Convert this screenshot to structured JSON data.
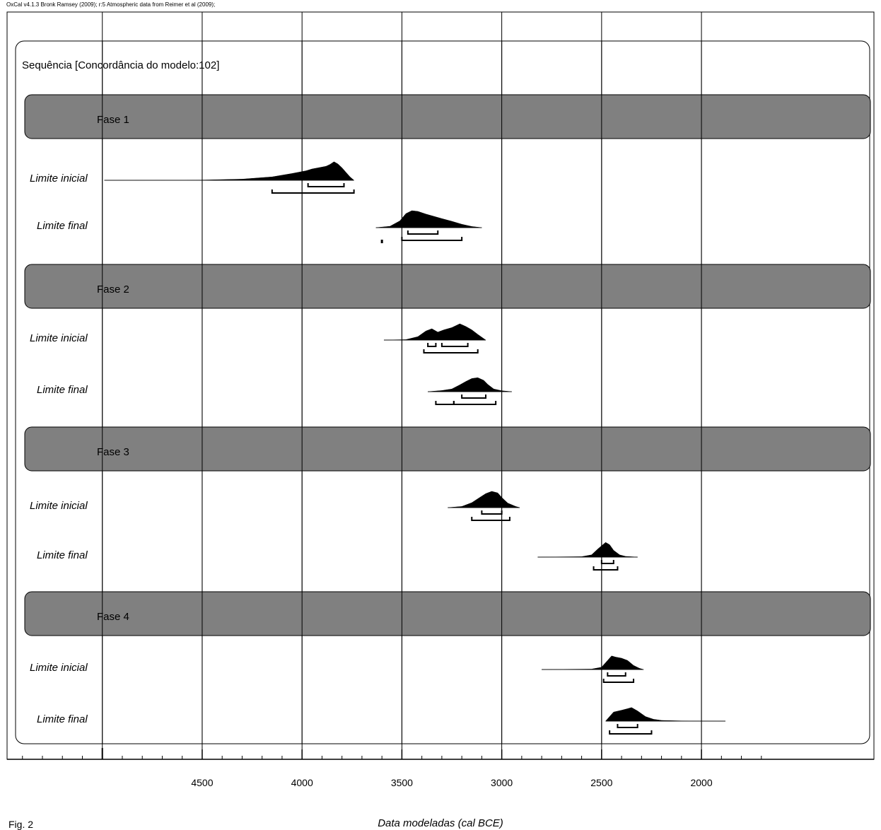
{
  "header": "OxCal v4.1.3 Bronk Ramsey (2009); r:5 Atmospheric data from Reimer et al (2009);",
  "figure_label": "Fig. 2",
  "chart_data": {
    "type": "area",
    "title": "Sequência [Concordância do modelo:102]",
    "xlabel": "Data modeladas (cal BCE)",
    "ylabel": "",
    "xlim": [
      5500,
      1700
    ],
    "x_reversed": true,
    "x_ticks": [
      4500,
      4000,
      3500,
      3000,
      2500,
      2000
    ],
    "grid": true,
    "phases": [
      {
        "name": "Fase 1",
        "boundaries": [
          {
            "label": "Limite inicial",
            "range": [
              4990,
              3740
            ],
            "curve": [
              [
                4990,
                0
              ],
              [
                4500,
                0.01
              ],
              [
                4300,
                0.05
              ],
              [
                4150,
                0.15
              ],
              [
                4050,
                0.3
              ],
              [
                3980,
                0.42
              ],
              [
                3950,
                0.5
              ],
              [
                3920,
                0.55
              ],
              [
                3880,
                0.62
              ],
              [
                3860,
                0.7
              ],
              [
                3840,
                0.82
              ],
              [
                3820,
                0.72
              ],
              [
                3800,
                0.55
              ],
              [
                3780,
                0.35
              ],
              [
                3760,
                0.15
              ],
              [
                3740,
                0
              ]
            ],
            "hpd68": [
              [
                3970,
                3790
              ]
            ],
            "hpd95": [
              [
                4150,
                3740
              ]
            ]
          },
          {
            "label": "Limite final",
            "range": [
              3630,
              3100
            ],
            "curve": [
              [
                3630,
                0
              ],
              [
                3560,
                0.06
              ],
              [
                3510,
                0.3
              ],
              [
                3480,
                0.62
              ],
              [
                3450,
                0.75
              ],
              [
                3420,
                0.72
              ],
              [
                3380,
                0.6
              ],
              [
                3340,
                0.5
              ],
              [
                3300,
                0.4
              ],
              [
                3250,
                0.28
              ],
              [
                3200,
                0.15
              ],
              [
                3150,
                0.05
              ],
              [
                3100,
                0
              ]
            ],
            "hpd68": [
              [
                3470,
                3320
              ]
            ],
            "hpd95": [
              [
                3600,
                3590
              ],
              [
                3500,
                3200
              ]
            ]
          }
        ]
      },
      {
        "name": "Fase 2",
        "boundaries": [
          {
            "label": "Limite inicial",
            "range": [
              3590,
              3080
            ],
            "curve": [
              [
                3590,
                0
              ],
              [
                3480,
                0.02
              ],
              [
                3420,
                0.15
              ],
              [
                3380,
                0.4
              ],
              [
                3350,
                0.5
              ],
              [
                3320,
                0.35
              ],
              [
                3290,
                0.45
              ],
              [
                3250,
                0.55
              ],
              [
                3210,
                0.72
              ],
              [
                3180,
                0.6
              ],
              [
                3150,
                0.45
              ],
              [
                3120,
                0.25
              ],
              [
                3080,
                0
              ]
            ],
            "hpd68": [
              [
                3370,
                3330
              ],
              [
                3300,
                3170
              ]
            ],
            "hpd95": [
              [
                3390,
                3120
              ]
            ]
          },
          {
            "label": "Limite final",
            "range": [
              3370,
              2950
            ],
            "curve": [
              [
                3370,
                0
              ],
              [
                3300,
                0.05
              ],
              [
                3250,
                0.12
              ],
              [
                3210,
                0.3
              ],
              [
                3180,
                0.45
              ],
              [
                3150,
                0.58
              ],
              [
                3120,
                0.62
              ],
              [
                3090,
                0.5
              ],
              [
                3070,
                0.32
              ],
              [
                3040,
                0.12
              ],
              [
                3000,
                0.04
              ],
              [
                2950,
                0
              ]
            ],
            "hpd68": [
              [
                3200,
                3080
              ]
            ],
            "hpd95": [
              [
                3330,
                3240
              ],
              [
                3240,
                3030
              ]
            ]
          }
        ]
      },
      {
        "name": "Fase 3",
        "boundaries": [
          {
            "label": "Limite inicial",
            "range": [
              3270,
              2910
            ],
            "curve": [
              [
                3270,
                0
              ],
              [
                3200,
                0.05
              ],
              [
                3150,
                0.22
              ],
              [
                3110,
                0.45
              ],
              [
                3080,
                0.62
              ],
              [
                3050,
                0.72
              ],
              [
                3020,
                0.65
              ],
              [
                3000,
                0.45
              ],
              [
                2970,
                0.2
              ],
              [
                2930,
                0.05
              ],
              [
                2910,
                0
              ]
            ],
            "hpd68": [
              [
                3100,
                3000
              ]
            ],
            "hpd95": [
              [
                3150,
                2960
              ]
            ]
          },
          {
            "label": "Limite final",
            "range": [
              2820,
              2320
            ],
            "curve": [
              [
                2820,
                0
              ],
              [
                2600,
                0.02
              ],
              [
                2550,
                0.1
              ],
              [
                2520,
                0.35
              ],
              [
                2500,
                0.5
              ],
              [
                2480,
                0.65
              ],
              [
                2460,
                0.55
              ],
              [
                2440,
                0.3
              ],
              [
                2410,
                0.1
              ],
              [
                2380,
                0.03
              ],
              [
                2320,
                0
              ]
            ],
            "hpd68": [
              [
                2500,
                2440
              ]
            ],
            "hpd95": [
              [
                2540,
                2420
              ]
            ]
          }
        ]
      },
      {
        "name": "Fase 4",
        "boundaries": [
          {
            "label": "Limite inicial",
            "range": [
              2800,
              2290
            ],
            "curve": [
              [
                2800,
                0
              ],
              [
                2550,
                0.02
              ],
              [
                2500,
                0.1
              ],
              [
                2470,
                0.4
              ],
              [
                2450,
                0.6
              ],
              [
                2430,
                0.55
              ],
              [
                2400,
                0.5
              ],
              [
                2370,
                0.4
              ],
              [
                2340,
                0.18
              ],
              [
                2310,
                0.05
              ],
              [
                2290,
                0
              ]
            ],
            "hpd68": [
              [
                2470,
                2380
              ]
            ],
            "hpd95": [
              [
                2490,
                2340
              ]
            ]
          },
          {
            "label": "Limite final",
            "range": [
              2480,
              1880
            ],
            "curve": [
              [
                2480,
                0
              ],
              [
                2460,
                0.2
              ],
              [
                2440,
                0.4
              ],
              [
                2400,
                0.48
              ],
              [
                2370,
                0.55
              ],
              [
                2350,
                0.6
              ],
              [
                2320,
                0.45
              ],
              [
                2280,
                0.2
              ],
              [
                2240,
                0.08
              ],
              [
                2200,
                0.03
              ],
              [
                2100,
                0.01
              ],
              [
                1880,
                0
              ]
            ],
            "hpd68": [
              [
                2420,
                2320
              ]
            ],
            "hpd95": [
              [
                2460,
                2250
              ]
            ]
          }
        ]
      }
    ]
  }
}
